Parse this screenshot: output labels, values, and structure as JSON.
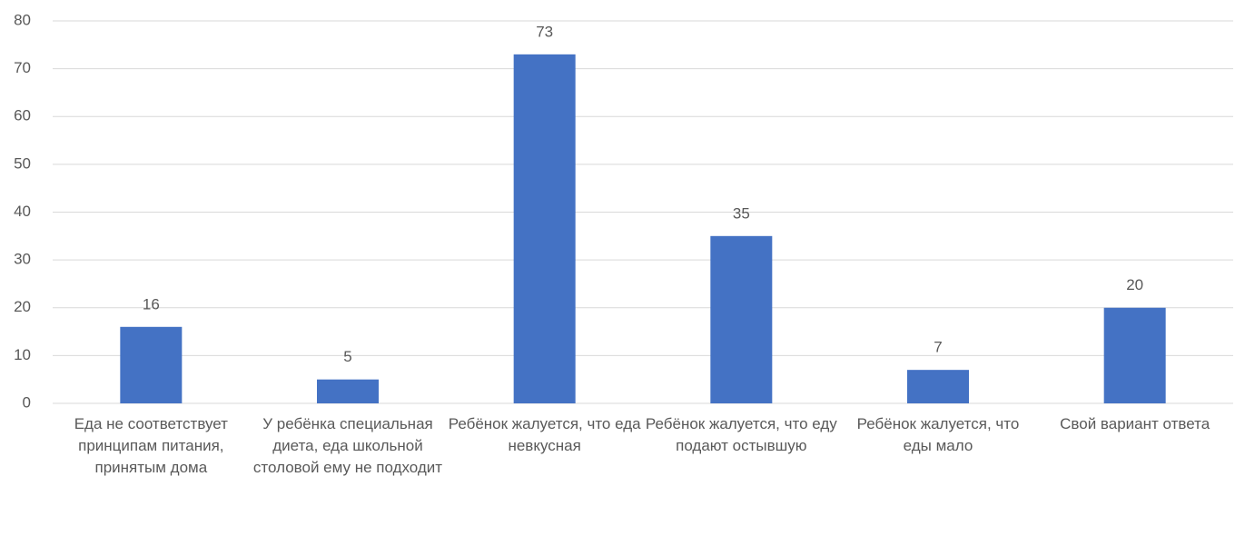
{
  "chart_data": {
    "type": "bar",
    "categories": [
      "Еда не соответствует принципам питания, принятым дома",
      "У ребёнка специальная диета, еда школьной столовой ему не подходит",
      "Ребёнок жалуется, что еда невкусная",
      "Ребёнок жалуется, что еду подают остывшую",
      "Ребёнок жалуется, что еды мало",
      "Свой вариант ответа"
    ],
    "values": [
      16,
      5,
      73,
      35,
      7,
      20
    ],
    "color": "#4472c4",
    "ylim": [
      0,
      80
    ],
    "yticks": [
      0,
      10,
      20,
      30,
      40,
      50,
      60,
      70,
      80
    ],
    "grid": true
  }
}
